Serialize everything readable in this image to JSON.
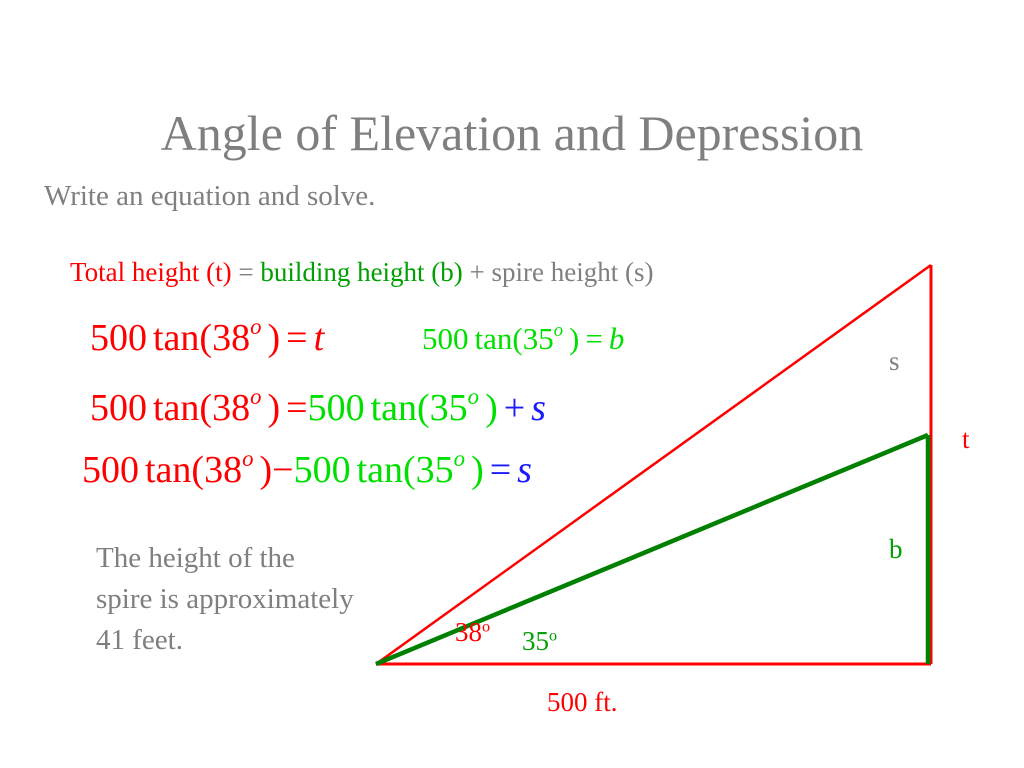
{
  "title": "Angle of Elevation and Depression",
  "subtitle": "Write an equation and solve.",
  "relationship": {
    "total": "Total height (t)",
    "eq": "=",
    "building": "building height (b)",
    "plus": "+",
    "spire": "spire height (s)"
  },
  "equations": {
    "eq1": {
      "coef": "500",
      "fn": "tan(38",
      "deg": "o",
      "close": ")",
      "eq": "=",
      "rhs": "t"
    },
    "eq2": {
      "coef": "500",
      "fn": "tan(35",
      "deg": "o",
      "close": ")",
      "eq": "=",
      "rhs": "b"
    },
    "eq3": {
      "lhs_coef": "500",
      "lhs_fn": "tan(38",
      "deg": "o",
      "lhs_close": ")",
      "eq": "=",
      "rhs_coef": "500",
      "rhs_fn": "tan(35",
      "rhs_close": ")",
      "plus": "+",
      "var": "s"
    },
    "eq4": {
      "a_coef": "500",
      "a_fn": "tan(38",
      "deg": "o",
      "a_close": ")",
      "minus": "−",
      "b_coef": "500",
      "b_fn": "tan(35",
      "b_close": ")",
      "eq": "=",
      "var": "s"
    }
  },
  "answer": "The height of the spire is approximately 41 feet.",
  "diagram_labels": {
    "s": "s",
    "t": "t",
    "b": "b",
    "angle_38": "38",
    "angle_35": "35",
    "degree": "o",
    "base": "500 ft."
  },
  "colors": {
    "total": "#ff0000",
    "building": "#00a000",
    "building_eq": "#00e000",
    "spire": "#1a1aff",
    "text": "#7f7f7f"
  }
}
